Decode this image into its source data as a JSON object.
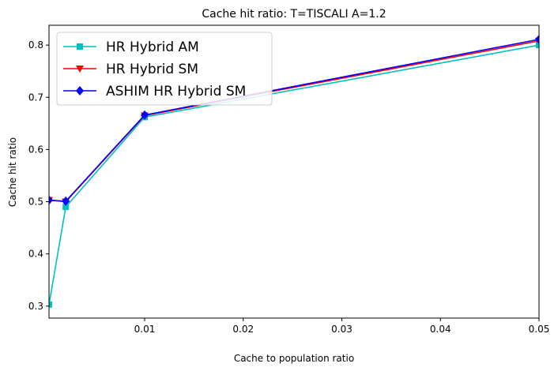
{
  "chart_data": {
    "type": "line",
    "title": "Cache hit ratio: T=TISCALI A=1.2",
    "xlabel": "Cache to population ratio",
    "ylabel": "Cache hit ratio",
    "xlim": [
      0.0003,
      0.05
    ],
    "ylim": [
      0.277,
      0.838
    ],
    "xticks": [
      0.01,
      0.02,
      0.03,
      0.04,
      0.05
    ],
    "xtick_labels": [
      "0.01",
      "0.02",
      "0.03",
      "0.04",
      "0.05"
    ],
    "yticks": [
      0.3,
      0.4,
      0.5,
      0.6,
      0.7,
      0.8
    ],
    "ytick_labels": [
      "0.3",
      "0.4",
      "0.5",
      "0.6",
      "0.7",
      "0.8"
    ],
    "grid": false,
    "legend_position": "upper-left",
    "x": [
      0.0003,
      0.002,
      0.01,
      0.05
    ],
    "series": [
      {
        "name": "HR Hybrid AM",
        "color": "#00bfbf",
        "marker": "square",
        "values": [
          0.303,
          0.49,
          0.662,
          0.8
        ]
      },
      {
        "name": "HR Hybrid SM",
        "color": "#ff0000",
        "marker": "triangle-down",
        "values": [
          0.503,
          0.5,
          0.665,
          0.808
        ]
      },
      {
        "name": "ASHIM HR Hybrid SM",
        "color": "#0000ff",
        "marker": "diamond",
        "values": [
          0.503,
          0.501,
          0.666,
          0.811
        ]
      }
    ]
  }
}
